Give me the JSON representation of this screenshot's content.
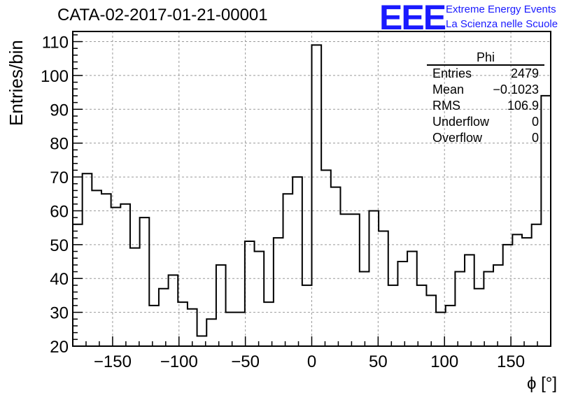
{
  "chart_data": {
    "type": "histogram",
    "title": "CATA-02-2017-01-21-00001",
    "xlabel": "ϕ [°]",
    "ylabel": "Entries/bin",
    "xlim": [
      -180,
      180
    ],
    "ylim": [
      20,
      113
    ],
    "grid": true,
    "bin_width": 7.2,
    "bin_edges_start": -180,
    "values": [
      56,
      71,
      66,
      65,
      61,
      62,
      49,
      58,
      32,
      37,
      41,
      33,
      31,
      23,
      28,
      44,
      30,
      30,
      51,
      48,
      33,
      52,
      65,
      70,
      38,
      109,
      72,
      67,
      59,
      59,
      42,
      60,
      54,
      38,
      45,
      48,
      38,
      35,
      30,
      32,
      42,
      47,
      37,
      42,
      44,
      50,
      53,
      52,
      56,
      94
    ],
    "x_ticks": [
      -150,
      -100,
      -50,
      0,
      50,
      100,
      150
    ],
    "x_tick_labels": [
      "−150",
      "−100",
      "−50",
      "0",
      "50",
      "100",
      "150"
    ],
    "y_ticks": [
      20,
      30,
      40,
      50,
      60,
      70,
      80,
      90,
      100,
      110
    ],
    "y_tick_labels": [
      "20",
      "30",
      "40",
      "50",
      "60",
      "70",
      "80",
      "90",
      "100",
      "110"
    ]
  },
  "stats_box": {
    "name": "Phi",
    "entries_label": "Entries",
    "entries": "2479",
    "mean_label": "Mean",
    "mean": "−0.1023",
    "rms_label": "RMS",
    "rms": "106.9",
    "underflow_label": "Underflow",
    "underflow": "0",
    "overflow_label": "Overflow",
    "overflow": "0"
  },
  "logo": {
    "mark": "EEE",
    "line1": "Extreme Energy Events",
    "line2": "La Scienza nelle Scuole",
    "color": "#1a1aff"
  }
}
